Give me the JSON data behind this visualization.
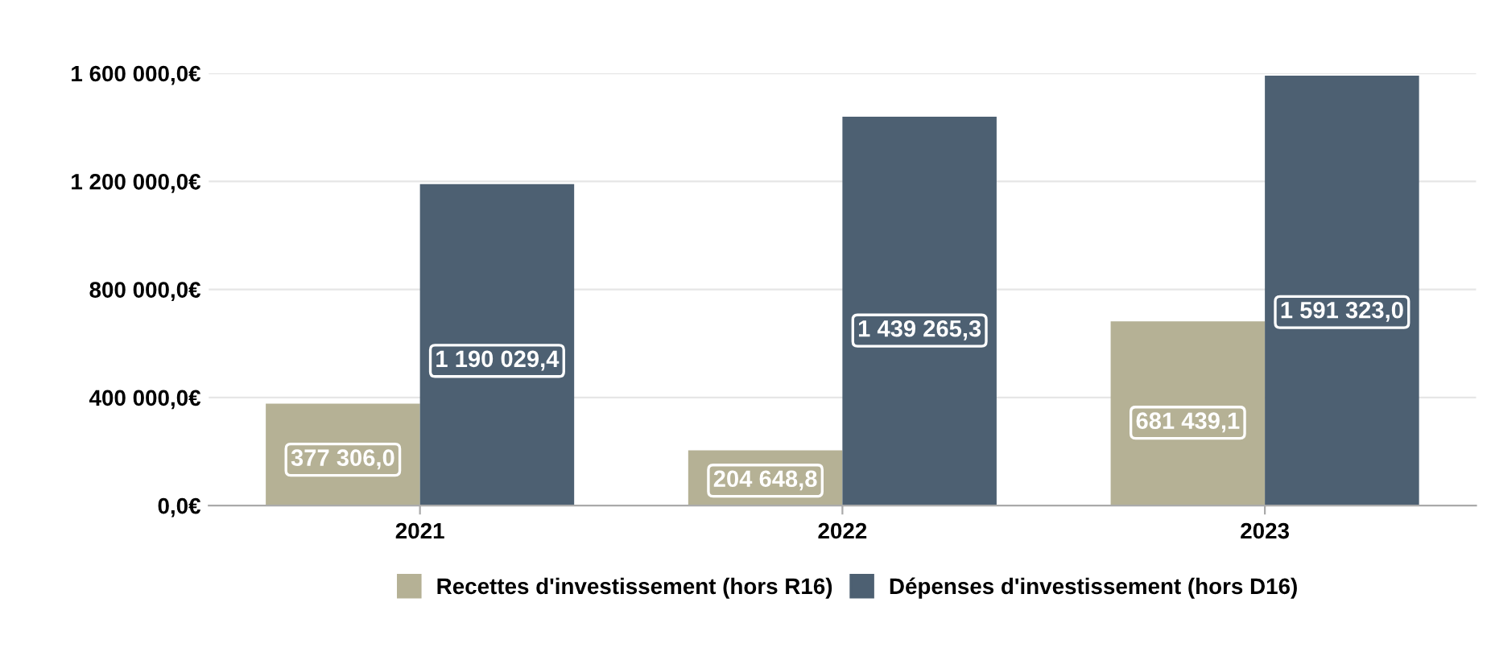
{
  "chart_data": {
    "type": "bar",
    "categories": [
      "2021",
      "2022",
      "2023"
    ],
    "series": [
      {
        "name": "Recettes d'investissement (hors R16)",
        "color": "#b5b195",
        "values": [
          377306.0,
          204648.8,
          681439.1
        ],
        "value_labels": [
          "377 306,0",
          "204 648,8",
          "681 439,1"
        ]
      },
      {
        "name": "Dépenses d'investissement (hors D16)",
        "color": "#4d6072",
        "values": [
          1190029.4,
          1439265.3,
          1591323.0
        ],
        "value_labels": [
          "1 190 029,4",
          "1 439 265,3",
          "1 591 323,0"
        ]
      }
    ],
    "ylim": [
      0,
      1600000
    ],
    "yticks": [
      {
        "value": 0,
        "label": "0,0€"
      },
      {
        "value": 400000,
        "label": "400 000,0€"
      },
      {
        "value": 800000,
        "label": "800 000,0€"
      },
      {
        "value": 1200000,
        "label": "1 200 000,0€"
      },
      {
        "value": 1600000,
        "label": "1 600 000,0€"
      }
    ],
    "grid": "y",
    "legend": "bottom",
    "marker": "square"
  }
}
